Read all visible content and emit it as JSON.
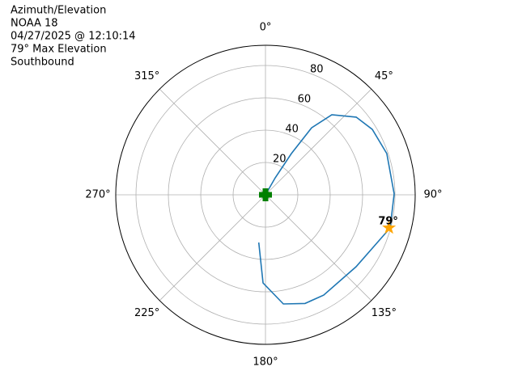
{
  "chart_data": {
    "type": "polar",
    "title_lines": [
      "Azimuth/Elevation",
      "NOAA 18",
      "04/27/2025 @ 12:10:14",
      "79° Max Elevation",
      "Southbound"
    ],
    "theta_zero": "N",
    "theta_direction": "clockwise",
    "rlim": [
      0,
      92.5
    ],
    "rticks": [
      20,
      40,
      60,
      80
    ],
    "thetaticks": [
      {
        "value": 0,
        "label": "0°"
      },
      {
        "value": 45,
        "label": "45°"
      },
      {
        "value": 90,
        "label": "90°"
      },
      {
        "value": 135,
        "label": "135°"
      },
      {
        "value": 180,
        "label": "180°"
      },
      {
        "value": 225,
        "label": "225°"
      },
      {
        "value": 270,
        "label": "270°"
      },
      {
        "value": 315,
        "label": "315°"
      }
    ],
    "grid": true,
    "series": [
      {
        "color": "#1f77b4",
        "theta": [
          188,
          181.6,
          170.7,
          160,
          149.9,
          128.5,
          108.4,
          104.9,
          89.6,
          71.2,
          58.5,
          49.4,
          39.6,
          34.5,
          32.1,
          29.7,
          0
        ],
        "r": [
          29.8,
          54.5,
          68.4,
          71.5,
          71.7,
          71.5,
          77.5,
          79.7,
          79.5,
          79.2,
          77.4,
          73.8,
          64.3,
          50.3,
          30.1,
          12.1,
          0
        ]
      }
    ],
    "markers": [
      {
        "shape": "star",
        "theta": 105,
        "r": 79,
        "label": "79°",
        "color": "orange"
      },
      {
        "shape": "plus",
        "theta": 0,
        "r": 0,
        "color": "green"
      }
    ]
  }
}
